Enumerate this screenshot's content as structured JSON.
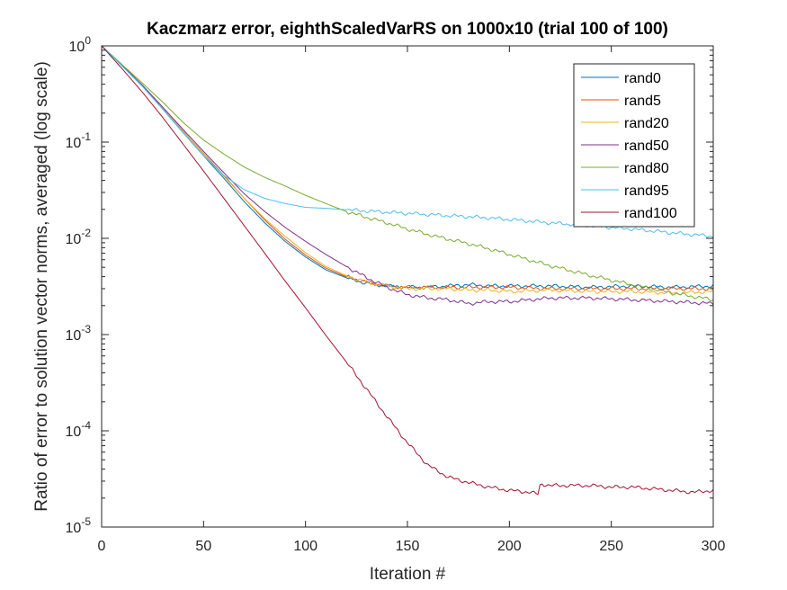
{
  "chart_data": {
    "type": "line",
    "title": "Kaczmarz error, eighthScaledVarRS on 1000x10 (trial 100 of 100)",
    "xlabel": "Iteration #",
    "ylabel": "Ratio of error to solution vector norms, averaged (log scale)",
    "xlim": [
      0,
      300
    ],
    "ylim": [
      1e-05,
      1
    ],
    "yscale": "log",
    "grid": false,
    "legend_position": "top-right",
    "x_ticks": [
      {
        "value": 0,
        "label": "0"
      },
      {
        "value": 50,
        "label": "50"
      },
      {
        "value": 100,
        "label": "100"
      },
      {
        "value": 150,
        "label": "150"
      },
      {
        "value": 200,
        "label": "200"
      },
      {
        "value": 250,
        "label": "250"
      },
      {
        "value": 300,
        "label": "300"
      }
    ],
    "y_ticks": [
      {
        "value": 1,
        "base": "10",
        "exp": "0"
      },
      {
        "value": 0.1,
        "base": "10",
        "exp": "-1"
      },
      {
        "value": 0.01,
        "base": "10",
        "exp": "-2"
      },
      {
        "value": 0.001,
        "base": "10",
        "exp": "-3"
      },
      {
        "value": 0.0001,
        "base": "10",
        "exp": "-4"
      },
      {
        "value": 1e-05,
        "base": "10",
        "exp": "-5"
      }
    ],
    "series": [
      {
        "name": "rand0",
        "color": "#0072BD",
        "x": [
          0,
          10,
          20,
          30,
          40,
          50,
          60,
          70,
          80,
          90,
          100,
          110,
          120,
          130,
          140,
          150,
          160,
          170,
          180,
          190,
          200,
          220,
          240,
          260,
          280,
          300
        ],
        "y": [
          1,
          0.62,
          0.38,
          0.22,
          0.125,
          0.072,
          0.042,
          0.024,
          0.0145,
          0.0093,
          0.0064,
          0.0047,
          0.0039,
          0.0034,
          0.0032,
          0.0031,
          0.0031,
          0.0032,
          0.0033,
          0.0032,
          0.0032,
          0.0032,
          0.0031,
          0.0032,
          0.0031,
          0.0032
        ]
      },
      {
        "name": "rand5",
        "color": "#D95319",
        "x": [
          0,
          10,
          20,
          30,
          40,
          50,
          60,
          70,
          80,
          90,
          100,
          110,
          120,
          130,
          140,
          150,
          160,
          170,
          180,
          190,
          200,
          220,
          240,
          260,
          280,
          300
        ],
        "y": [
          1,
          0.63,
          0.39,
          0.23,
          0.13,
          0.076,
          0.045,
          0.026,
          0.0155,
          0.0098,
          0.0067,
          0.0049,
          0.004,
          0.0035,
          0.0032,
          0.0031,
          0.0031,
          0.0031,
          0.0031,
          0.0031,
          0.0031,
          0.003,
          0.003,
          0.003,
          0.003,
          0.003
        ]
      },
      {
        "name": "rand20",
        "color": "#EDB120",
        "x": [
          0,
          10,
          20,
          30,
          40,
          50,
          60,
          70,
          80,
          90,
          100,
          110,
          120,
          130,
          140,
          150,
          160,
          170,
          180,
          190,
          200,
          220,
          240,
          260,
          280,
          300
        ],
        "y": [
          1,
          0.63,
          0.39,
          0.23,
          0.13,
          0.075,
          0.044,
          0.026,
          0.016,
          0.0105,
          0.0071,
          0.0051,
          0.0041,
          0.0035,
          0.0032,
          0.003,
          0.003,
          0.003,
          0.0029,
          0.0029,
          0.0028,
          0.0029,
          0.0028,
          0.0028,
          0.0027,
          0.0028
        ]
      },
      {
        "name": "rand50",
        "color": "#7E2F8E",
        "x": [
          0,
          10,
          20,
          30,
          40,
          50,
          60,
          70,
          80,
          90,
          100,
          110,
          120,
          130,
          140,
          150,
          160,
          170,
          180,
          190,
          200,
          220,
          240,
          260,
          280,
          300
        ],
        "y": [
          1,
          0.63,
          0.39,
          0.23,
          0.135,
          0.08,
          0.048,
          0.029,
          0.019,
          0.013,
          0.0093,
          0.0068,
          0.0051,
          0.0039,
          0.0031,
          0.0026,
          0.0024,
          0.0023,
          0.0021,
          0.0022,
          0.0022,
          0.0024,
          0.0024,
          0.0023,
          0.0022,
          0.0021
        ]
      },
      {
        "name": "rand80",
        "color": "#77AC30",
        "x": [
          0,
          10,
          20,
          30,
          40,
          50,
          60,
          70,
          80,
          90,
          100,
          110,
          120,
          130,
          140,
          150,
          160,
          170,
          180,
          190,
          200,
          220,
          240,
          260,
          280,
          300
        ],
        "y": [
          1,
          0.64,
          0.41,
          0.26,
          0.16,
          0.105,
          0.075,
          0.055,
          0.043,
          0.035,
          0.028,
          0.023,
          0.019,
          0.0165,
          0.0145,
          0.0125,
          0.011,
          0.0098,
          0.0088,
          0.0078,
          0.0068,
          0.0052,
          0.0041,
          0.0033,
          0.0027,
          0.0023
        ]
      },
      {
        "name": "rand95",
        "color": "#4DBEEE",
        "x": [
          0,
          10,
          20,
          30,
          40,
          50,
          60,
          70,
          80,
          90,
          100,
          110,
          120,
          130,
          140,
          150,
          160,
          170,
          180,
          190,
          200,
          220,
          240,
          260,
          280,
          300
        ],
        "y": [
          1,
          0.62,
          0.38,
          0.22,
          0.125,
          0.072,
          0.045,
          0.032,
          0.026,
          0.023,
          0.021,
          0.0205,
          0.0198,
          0.0192,
          0.0187,
          0.0182,
          0.0177,
          0.0172,
          0.0168,
          0.0163,
          0.0157,
          0.0145,
          0.0135,
          0.0125,
          0.0114,
          0.0105
        ]
      },
      {
        "name": "rand100",
        "color": "#A2142F",
        "x": [
          0,
          10,
          20,
          30,
          40,
          50,
          60,
          70,
          80,
          90,
          100,
          110,
          120,
          130,
          140,
          150,
          160,
          170,
          180,
          190,
          200,
          210,
          214,
          215,
          216,
          220,
          230,
          240,
          250,
          260,
          270,
          280,
          290,
          300
        ],
        "y": [
          1,
          0.58,
          0.33,
          0.18,
          0.095,
          0.05,
          0.026,
          0.0135,
          0.007,
          0.0036,
          0.0019,
          0.00098,
          0.00052,
          0.00027,
          0.00014,
          7.5e-05,
          4.4e-05,
          3.3e-05,
          2.9e-05,
          2.6e-05,
          2.4e-05,
          2.3e-05,
          2.2e-05,
          2.7e-05,
          2.8e-05,
          2.7e-05,
          2.7e-05,
          2.7e-05,
          2.6e-05,
          2.6e-05,
          2.5e-05,
          2.4e-05,
          2.3e-05,
          2.4e-05
        ]
      }
    ]
  }
}
